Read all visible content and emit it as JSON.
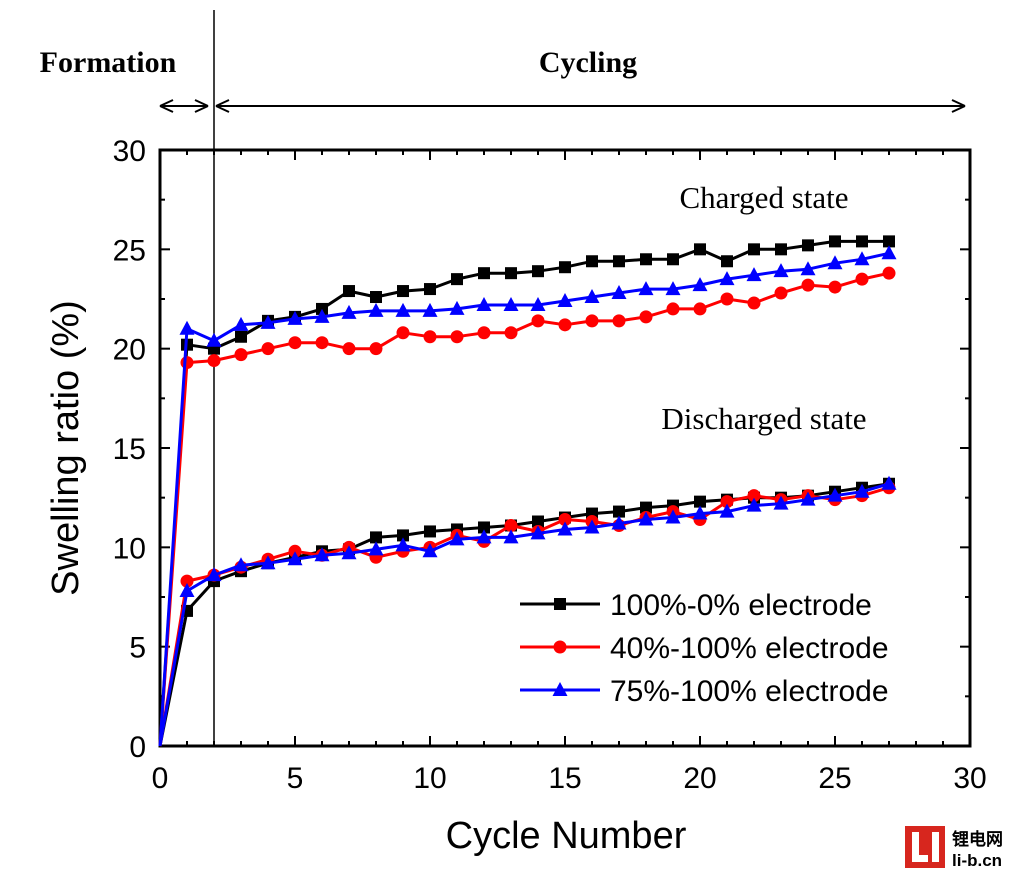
{
  "header": {
    "formation_label": "Formation",
    "cycling_label": "Cycling"
  },
  "watermark": {
    "chinese_text": "锂电网",
    "domain_text": "li-b.cn",
    "brand_color": "#d7261e"
  },
  "chart_data": {
    "type": "line",
    "title": "",
    "xlabel": "Cycle Number",
    "ylabel": "Swelling ratio (%)",
    "xlim": [
      0,
      30
    ],
    "ylim": [
      0,
      30
    ],
    "x_ticks": [
      0,
      5,
      10,
      15,
      20,
      25,
      30
    ],
    "y_ticks": [
      0,
      5,
      10,
      15,
      20,
      25,
      30
    ],
    "grid": false,
    "legend_position": "bottom-right",
    "divider_x": 2,
    "annotations": {
      "charged": "Charged state",
      "discharged": "Discharged state"
    },
    "series": [
      {
        "name": "100%-0% electrode",
        "color": "#000000",
        "marker": "square",
        "charged": {
          "x": [
            0,
            1,
            2,
            3,
            4,
            5,
            6,
            7,
            8,
            9,
            10,
            11,
            12,
            13,
            14,
            15,
            16,
            17,
            18,
            19,
            20,
            21,
            22,
            23,
            24,
            25,
            26,
            27
          ],
          "y": [
            0,
            20.2,
            20.0,
            20.6,
            21.4,
            21.6,
            22.0,
            22.9,
            22.6,
            22.9,
            23.0,
            23.5,
            23.8,
            23.8,
            23.9,
            24.1,
            24.4,
            24.4,
            24.5,
            24.5,
            25.0,
            24.4,
            25.0,
            25.0,
            25.2,
            25.4,
            25.4,
            25.4
          ]
        },
        "discharged": {
          "x": [
            0,
            1,
            2,
            3,
            4,
            5,
            6,
            7,
            8,
            9,
            10,
            11,
            12,
            13,
            14,
            15,
            16,
            17,
            18,
            19,
            20,
            21,
            22,
            23,
            24,
            25,
            26,
            27
          ],
          "y": [
            0,
            6.8,
            8.3,
            8.8,
            9.2,
            9.5,
            9.8,
            9.9,
            10.5,
            10.6,
            10.8,
            10.9,
            11.0,
            11.1,
            11.3,
            11.5,
            11.7,
            11.8,
            12.0,
            12.1,
            12.3,
            12.4,
            12.5,
            12.5,
            12.6,
            12.8,
            13.0,
            13.2
          ]
        }
      },
      {
        "name": "40%-100% electrode",
        "color": "#ff0000",
        "marker": "circle",
        "charged": {
          "x": [
            0,
            1,
            2,
            3,
            4,
            5,
            6,
            7,
            8,
            9,
            10,
            11,
            12,
            13,
            14,
            15,
            16,
            17,
            18,
            19,
            20,
            21,
            22,
            23,
            24,
            25,
            26,
            27
          ],
          "y": [
            0,
            19.3,
            19.4,
            19.7,
            20.0,
            20.3,
            20.3,
            20.0,
            20.0,
            20.8,
            20.6,
            20.6,
            20.8,
            20.8,
            21.4,
            21.2,
            21.4,
            21.4,
            21.6,
            22.0,
            22.0,
            22.5,
            22.3,
            22.8,
            23.2,
            23.1,
            23.5,
            23.8
          ]
        },
        "discharged": {
          "x": [
            0,
            1,
            2,
            3,
            4,
            5,
            6,
            7,
            8,
            9,
            10,
            11,
            12,
            13,
            14,
            15,
            16,
            17,
            18,
            19,
            20,
            21,
            22,
            23,
            24,
            25,
            26,
            27
          ],
          "y": [
            0,
            8.3,
            8.6,
            9.0,
            9.4,
            9.8,
            9.6,
            10.0,
            9.5,
            9.8,
            10.0,
            10.6,
            10.3,
            11.1,
            10.8,
            11.4,
            11.3,
            11.1,
            11.5,
            11.8,
            11.4,
            12.3,
            12.6,
            12.4,
            12.6,
            12.4,
            12.6,
            13.0
          ]
        }
      },
      {
        "name": "75%-100% electrode",
        "color": "#0000ff",
        "marker": "triangle",
        "charged": {
          "x": [
            0,
            1,
            2,
            3,
            4,
            5,
            6,
            7,
            8,
            9,
            10,
            11,
            12,
            13,
            14,
            15,
            16,
            17,
            18,
            19,
            20,
            21,
            22,
            23,
            24,
            25,
            26,
            27
          ],
          "y": [
            0,
            21.0,
            20.4,
            21.2,
            21.3,
            21.5,
            21.6,
            21.8,
            21.9,
            21.9,
            21.9,
            22.0,
            22.2,
            22.2,
            22.2,
            22.4,
            22.6,
            22.8,
            23.0,
            23.0,
            23.2,
            23.5,
            23.7,
            23.9,
            24.0,
            24.3,
            24.5,
            24.8
          ]
        },
        "discharged": {
          "x": [
            0,
            1,
            2,
            3,
            4,
            5,
            6,
            7,
            8,
            9,
            10,
            11,
            12,
            13,
            14,
            15,
            16,
            17,
            18,
            19,
            20,
            21,
            22,
            23,
            24,
            25,
            26,
            27
          ],
          "y": [
            0,
            7.8,
            8.6,
            9.1,
            9.2,
            9.4,
            9.6,
            9.7,
            9.9,
            10.1,
            9.8,
            10.4,
            10.5,
            10.5,
            10.7,
            10.9,
            11.0,
            11.2,
            11.4,
            11.5,
            11.7,
            11.8,
            12.1,
            12.2,
            12.4,
            12.6,
            12.8,
            13.2
          ]
        }
      }
    ]
  }
}
